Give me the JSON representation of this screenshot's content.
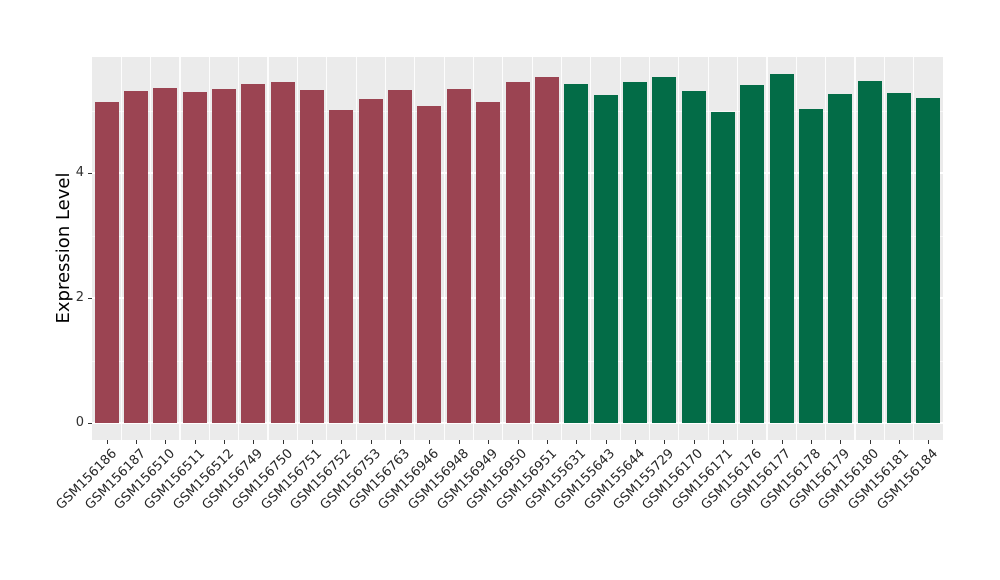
{
  "chart_data": {
    "type": "bar",
    "title": "",
    "xlabel": "",
    "ylabel": "Expression Level",
    "y_ticks": [
      0,
      2,
      4
    ],
    "y_minor_gridlines": [
      1,
      3,
      5
    ],
    "ylim": [
      0,
      5.86
    ],
    "grid": true,
    "legend": false,
    "panel_background": "#EBEBEB",
    "gridline_color": "#FFFFFF",
    "bar_groups": [
      {
        "name": "group-1-maroon",
        "color": "#9B4452"
      },
      {
        "name": "group-2-green",
        "color": "#036C47"
      }
    ],
    "samples": [
      {
        "label": "GSM156186",
        "value": 5.14,
        "group": 0
      },
      {
        "label": "GSM156187",
        "value": 5.31,
        "group": 0
      },
      {
        "label": "GSM156510",
        "value": 5.36,
        "group": 0
      },
      {
        "label": "GSM156511",
        "value": 5.29,
        "group": 0
      },
      {
        "label": "GSM156512",
        "value": 5.34,
        "group": 0
      },
      {
        "label": "GSM156749",
        "value": 5.42,
        "group": 0
      },
      {
        "label": "GSM156750",
        "value": 5.45,
        "group": 0
      },
      {
        "label": "GSM156751",
        "value": 5.33,
        "group": 0
      },
      {
        "label": "GSM156752",
        "value": 5.01,
        "group": 0
      },
      {
        "label": "GSM156753",
        "value": 5.18,
        "group": 0
      },
      {
        "label": "GSM156763",
        "value": 5.33,
        "group": 0
      },
      {
        "label": "GSM156946",
        "value": 5.07,
        "group": 0
      },
      {
        "label": "GSM156948",
        "value": 5.34,
        "group": 0
      },
      {
        "label": "GSM156949",
        "value": 5.14,
        "group": 0
      },
      {
        "label": "GSM156950",
        "value": 5.46,
        "group": 0
      },
      {
        "label": "GSM156951",
        "value": 5.53,
        "group": 0
      },
      {
        "label": "GSM155631",
        "value": 5.42,
        "group": 1
      },
      {
        "label": "GSM155643",
        "value": 5.25,
        "group": 1
      },
      {
        "label": "GSM155644",
        "value": 5.45,
        "group": 1
      },
      {
        "label": "GSM155729",
        "value": 5.53,
        "group": 1
      },
      {
        "label": "GSM156170",
        "value": 5.31,
        "group": 1
      },
      {
        "label": "GSM156171",
        "value": 4.98,
        "group": 1
      },
      {
        "label": "GSM156176",
        "value": 5.41,
        "group": 1
      },
      {
        "label": "GSM156177",
        "value": 5.58,
        "group": 1
      },
      {
        "label": "GSM156178",
        "value": 5.03,
        "group": 1
      },
      {
        "label": "GSM156179",
        "value": 5.27,
        "group": 1
      },
      {
        "label": "GSM156180",
        "value": 5.48,
        "group": 1
      },
      {
        "label": "GSM156181",
        "value": 5.28,
        "group": 1
      },
      {
        "label": "GSM156184",
        "value": 5.2,
        "group": 1
      }
    ]
  },
  "colors": {
    "figure_background": "#FFFFFF",
    "panel_background": "#EBEBEB",
    "gridline": "#FFFFFF",
    "axis_text": "#303030",
    "axis_title": "#000000",
    "tick_mark": "#333333"
  }
}
